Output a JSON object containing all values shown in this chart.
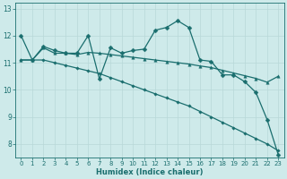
{
  "xlabel": "Humidex (Indice chaleur)",
  "xlim": [
    -0.5,
    23.5
  ],
  "ylim": [
    7.5,
    13.2
  ],
  "yticks": [
    8,
    9,
    10,
    11,
    12,
    13
  ],
  "xticks": [
    0,
    1,
    2,
    3,
    4,
    5,
    6,
    7,
    8,
    9,
    10,
    11,
    12,
    13,
    14,
    15,
    16,
    17,
    18,
    19,
    20,
    21,
    22,
    23
  ],
  "bg_color": "#ceeaea",
  "grid_color_major": "#b8d8d8",
  "grid_color_minor": "#d4ecec",
  "line_color": "#1a6e6e",
  "series": [
    {
      "x": [
        0,
        1,
        2,
        3,
        4,
        5,
        6,
        7,
        8,
        9,
        10,
        11,
        12,
        13,
        14,
        15,
        16,
        17,
        18,
        19,
        20,
        21,
        22,
        23
      ],
      "y": [
        12.0,
        11.1,
        11.6,
        11.45,
        11.35,
        11.35,
        12.0,
        10.4,
        11.55,
        11.35,
        11.45,
        11.5,
        12.2,
        12.3,
        12.55,
        12.3,
        11.1,
        11.05,
        10.55,
        10.55,
        10.3,
        9.9,
        8.9,
        7.6
      ],
      "marker": "D",
      "markersize": 2.5,
      "lw": 0.9
    },
    {
      "x": [
        0,
        1,
        2,
        3,
        4,
        5,
        6,
        7,
        8,
        9,
        10,
        11,
        12,
        13,
        14,
        15,
        16,
        17,
        18,
        19,
        20,
        21,
        22,
        23
      ],
      "y": [
        11.1,
        11.1,
        11.55,
        11.35,
        11.35,
        11.3,
        11.38,
        11.35,
        11.3,
        11.25,
        11.2,
        11.15,
        11.1,
        11.05,
        11.0,
        10.95,
        10.88,
        10.82,
        10.72,
        10.62,
        10.52,
        10.42,
        10.28,
        10.5
      ],
      "marker": "^",
      "markersize": 2.5,
      "lw": 0.9
    },
    {
      "x": [
        0,
        1,
        2,
        3,
        4,
        5,
        6,
        7,
        8,
        9,
        10,
        11,
        12,
        13,
        14,
        15,
        16,
        17,
        18,
        19,
        20,
        21,
        22,
        23
      ],
      "y": [
        11.1,
        11.1,
        11.1,
        11.0,
        10.9,
        10.8,
        10.7,
        10.6,
        10.45,
        10.3,
        10.15,
        10.0,
        9.85,
        9.7,
        9.55,
        9.4,
        9.2,
        9.0,
        8.8,
        8.6,
        8.4,
        8.2,
        8.0,
        7.75
      ],
      "marker": "D",
      "markersize": 1.8,
      "lw": 0.9
    }
  ]
}
